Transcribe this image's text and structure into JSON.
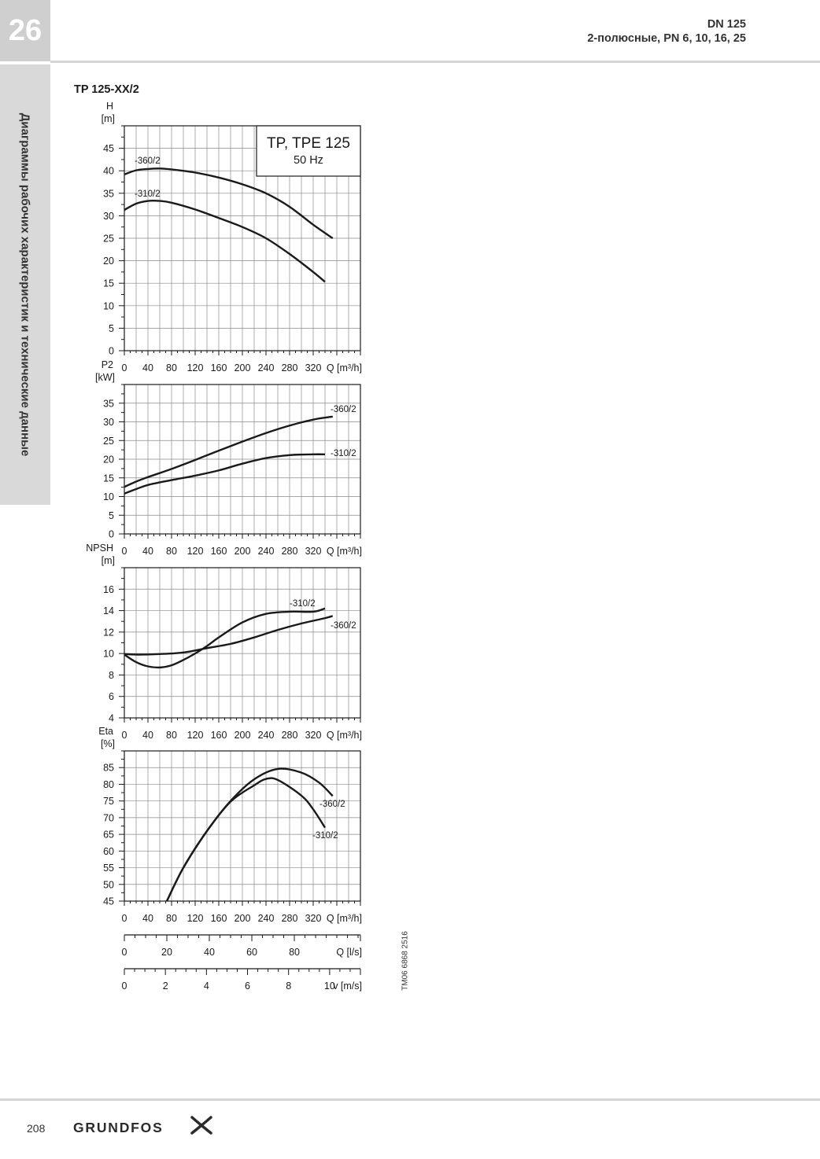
{
  "header": {
    "section_number": "26",
    "title": "DN 125",
    "subtitle": "2-полюсные, PN 6, 10, 16, 25"
  },
  "sidebar": {
    "label": "Диаграммы рабочих характеристик и технические данные"
  },
  "figure": {
    "title": "TP 125-XX/2",
    "legend_box": {
      "line1": "TP, TPE 125",
      "line2": "50 Hz"
    },
    "drawing_code": "TM06 6868 2516"
  },
  "chart_data": [
    {
      "type": "line",
      "ylabel": "H",
      "yunit": "[m]",
      "xlabel": "Q [m³/h]",
      "xlim": [
        0,
        400
      ],
      "ylim": [
        0,
        50
      ],
      "xticks": [
        0,
        40,
        80,
        120,
        160,
        200,
        240,
        280,
        320
      ],
      "yticks": [
        0,
        5,
        10,
        15,
        20,
        25,
        30,
        35,
        40,
        45
      ],
      "grid": true,
      "series": [
        {
          "name": "-360/2",
          "x": [
            0,
            20,
            40,
            60,
            80,
            120,
            160,
            200,
            240,
            280,
            320,
            353
          ],
          "y": [
            39.2,
            40.1,
            40.4,
            40.5,
            40.3,
            39.6,
            38.5,
            37.0,
            35.0,
            32.0,
            28.0,
            25.0
          ]
        },
        {
          "name": "-310/2",
          "x": [
            0,
            20,
            40,
            60,
            80,
            120,
            160,
            200,
            240,
            280,
            320,
            340
          ],
          "y": [
            31.3,
            32.7,
            33.3,
            33.3,
            32.9,
            31.4,
            29.5,
            27.5,
            25.0,
            21.5,
            17.5,
            15.3
          ]
        }
      ]
    },
    {
      "type": "line",
      "ylabel": "P2",
      "yunit": "[kW]",
      "xlabel": "Q [m³/h]",
      "xlim": [
        0,
        400
      ],
      "ylim": [
        0,
        40
      ],
      "xticks": [
        0,
        40,
        80,
        120,
        160,
        200,
        240,
        280,
        320
      ],
      "yticks": [
        0,
        5,
        10,
        15,
        20,
        25,
        30,
        35
      ],
      "grid": true,
      "series": [
        {
          "name": "-360/2",
          "x": [
            0,
            20,
            40,
            80,
            120,
            160,
            200,
            240,
            280,
            320,
            353
          ],
          "y": [
            12.6,
            14.0,
            15.2,
            17.4,
            19.8,
            22.3,
            24.7,
            27.0,
            29.0,
            30.6,
            31.4
          ]
        },
        {
          "name": "-310/2",
          "x": [
            0,
            20,
            40,
            80,
            120,
            160,
            200,
            240,
            280,
            320,
            340
          ],
          "y": [
            10.8,
            12.0,
            13.1,
            14.4,
            15.6,
            17.0,
            18.8,
            20.3,
            21.1,
            21.3,
            21.3
          ]
        }
      ]
    },
    {
      "type": "line",
      "ylabel": "NPSH",
      "yunit": "[m]",
      "xlabel": "Q [m³/h]",
      "xlim": [
        0,
        400
      ],
      "ylim": [
        4,
        18
      ],
      "xticks": [
        0,
        40,
        80,
        120,
        160,
        200,
        240,
        280,
        320
      ],
      "yticks": [
        4,
        6,
        8,
        10,
        12,
        14,
        16
      ],
      "grid": true,
      "series": [
        {
          "name": "-310/2",
          "x": [
            0,
            20,
            40,
            60,
            80,
            100,
            120,
            140,
            160,
            200,
            240,
            280,
            320,
            340
          ],
          "y": [
            9.9,
            9.2,
            8.8,
            8.7,
            8.9,
            9.4,
            10.0,
            10.7,
            11.5,
            12.9,
            13.7,
            13.9,
            13.9,
            14.2
          ]
        },
        {
          "name": "-360/2",
          "x": [
            0,
            27,
            60,
            100,
            140,
            180,
            220,
            260,
            300,
            340,
            353
          ],
          "y": [
            9.95,
            9.9,
            9.95,
            10.1,
            10.5,
            10.9,
            11.5,
            12.2,
            12.8,
            13.3,
            13.5
          ]
        }
      ]
    },
    {
      "type": "line",
      "ylabel": "Eta",
      "yunit": "[%]",
      "xlabel": "Q [m³/h]",
      "xlim": [
        0,
        400
      ],
      "ylim": [
        45,
        90
      ],
      "xticks": [
        0,
        40,
        80,
        120,
        160,
        200,
        240,
        280,
        320
      ],
      "yticks": [
        45,
        50,
        55,
        60,
        65,
        70,
        75,
        80,
        85
      ],
      "grid": true,
      "series": [
        {
          "name": "-360/2",
          "x": [
            72,
            100,
            140,
            180,
            220,
            260,
            300,
            330,
            353
          ],
          "y": [
            45,
            55,
            66,
            75,
            81.5,
            84.6,
            83.5,
            80.5,
            76.5
          ]
        },
        {
          "name": "-310/2",
          "x": [
            72,
            100,
            140,
            180,
            220,
            240,
            260,
            300,
            320,
            340
          ],
          "y": [
            45,
            55,
            66,
            74.8,
            79.7,
            81.6,
            81.3,
            76.6,
            72.5,
            67.0
          ]
        }
      ]
    }
  ],
  "secondary_axes": [
    {
      "label": "Q [l/s]",
      "ticks": [
        "0",
        "20",
        "40",
        "60",
        "80"
      ],
      "max": 111.1
    },
    {
      "label": "v [m/s]",
      "ticks": [
        "0",
        "2",
        "4",
        "6",
        "8",
        "10"
      ],
      "max": 11.5
    }
  ],
  "footer": {
    "page_number": "208",
    "brand": "GRUNDFOS"
  }
}
